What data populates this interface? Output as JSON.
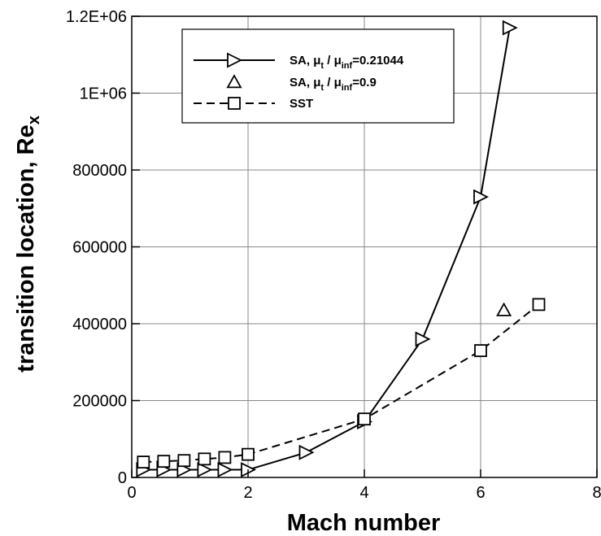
{
  "chart_data": {
    "type": "line",
    "xlabel": "Mach number",
    "ylabel": {
      "main": "transition location, Re",
      "sub": "x"
    },
    "xlim": [
      0,
      8
    ],
    "ylim": [
      0,
      1200000
    ],
    "x_ticks": [
      0,
      2,
      4,
      6,
      8
    ],
    "x_tick_labels": [
      "0",
      "2",
      "4",
      "6",
      "8"
    ],
    "y_ticks": [
      0,
      200000,
      400000,
      600000,
      800000,
      1000000,
      1200000
    ],
    "y_tick_labels": [
      "0",
      "200000",
      "400000",
      "600000",
      "800000",
      "1E+06",
      "1.2E+06"
    ],
    "grid": true,
    "legend_placement": "top-left",
    "series": [
      {
        "name_parts": [
          "SA, ",
          "μ",
          "t",
          " / ",
          "μ",
          "inf",
          "=0.21044"
        ],
        "marker": "triangle-right",
        "line": "solid",
        "x": [
          0.2,
          0.55,
          0.9,
          1.25,
          1.6,
          2.0,
          3.0,
          4.0,
          5.0,
          6.0,
          6.5
        ],
        "y": [
          20000,
          20000,
          20000,
          20000,
          20000,
          20000,
          65000,
          145000,
          360000,
          730000,
          1170000
        ]
      },
      {
        "name_parts": [
          "SA, ",
          "μ",
          "t",
          " / ",
          "μ",
          "inf",
          "=0.9"
        ],
        "marker": "triangle-up",
        "line": "none",
        "x": [
          6.4
        ],
        "y": [
          435000
        ]
      },
      {
        "name": "SST",
        "marker": "square",
        "line": "dashed",
        "x": [
          0.2,
          0.55,
          0.9,
          1.25,
          1.6,
          2.0,
          4.0,
          6.0,
          7.0
        ],
        "y": [
          40000,
          42000,
          44000,
          48000,
          52000,
          60000,
          152000,
          330000,
          450000
        ]
      }
    ]
  }
}
